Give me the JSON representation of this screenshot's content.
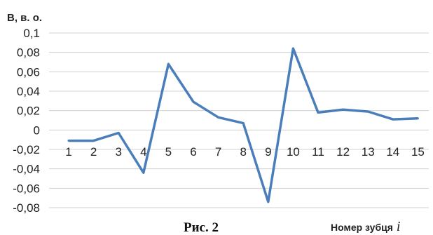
{
  "caption": "Рис. 2",
  "chart_data": {
    "type": "line",
    "ylabel": "B, в. о.",
    "xlabel": "Номер зубця",
    "xlabel_var": "i",
    "x": [
      1,
      2,
      3,
      4,
      5,
      6,
      7,
      8,
      9,
      10,
      11,
      12,
      13,
      14,
      15
    ],
    "series": [
      {
        "values": [
          -0.011,
          -0.011,
          -0.003,
          -0.044,
          0.068,
          0.029,
          0.013,
          0.007,
          -0.074,
          0.084,
          0.018,
          0.021,
          0.019,
          0.011,
          0.012
        ],
        "color": "#4a7ebb"
      }
    ],
    "ylim": [
      -0.08,
      0.1
    ],
    "yticks": [
      -0.08,
      -0.06,
      -0.04,
      -0.02,
      0,
      0.02,
      0.04,
      0.06,
      0.08,
      0.1
    ],
    "ytick_labels": [
      "-0,08",
      "-0,06",
      "-0,04",
      "-0,02",
      "0",
      "0,02",
      "0,04",
      "0,06",
      "0,08",
      "0,1"
    ],
    "xtick_labels": [
      "1",
      "2",
      "3",
      "4",
      "5",
      "6",
      "7",
      "8",
      "9",
      "10",
      "11",
      "12",
      "13",
      "14",
      "15"
    ],
    "grid": true,
    "grid_color": "#d0d0d0",
    "legend": "none"
  }
}
